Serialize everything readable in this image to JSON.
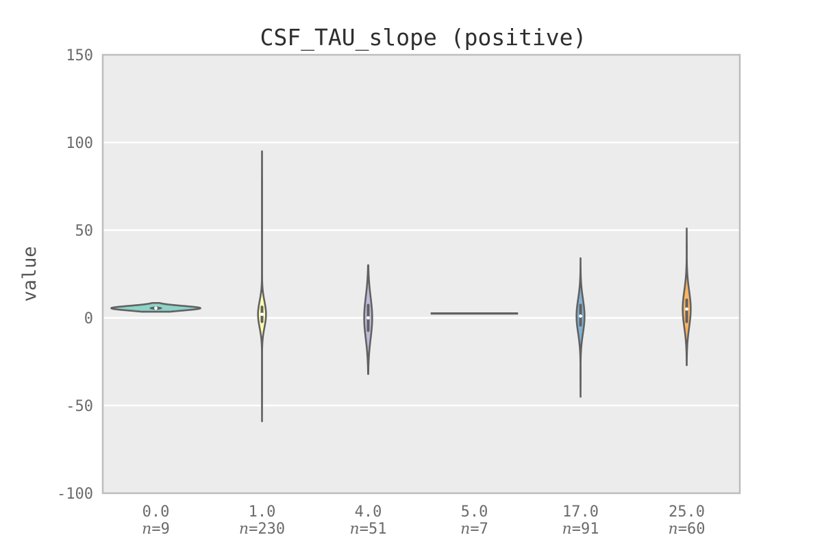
{
  "chart_data": {
    "type": "violin",
    "title": "CSF_TAU_slope (positive)",
    "ylabel": "value",
    "xlabel": "",
    "ylim": [
      -100,
      150
    ],
    "yticks": [
      -100,
      -50,
      0,
      50,
      100,
      150
    ],
    "grid": true,
    "n_prefix": "n",
    "colors": {
      "background": "#ececec",
      "grid": "#ffffff",
      "border": "#bdbdbd",
      "outline": "#616161"
    },
    "categories": [
      "0.0",
      "1.0",
      "4.0",
      "5.0",
      "17.0",
      "25.0"
    ],
    "series": [
      {
        "category": "0.0",
        "n": "=9",
        "color": "#8dd3c7",
        "min": 3.5,
        "max": 8.5,
        "q1": 4.6,
        "q3": 6.4,
        "median": 5.5,
        "halfwidth": 1.0
      },
      {
        "category": "1.0",
        "n": "=230",
        "color": "#ffffb3",
        "min": -59,
        "max": 95,
        "q1": -3,
        "q3": 7,
        "median": 2,
        "halfwidth": 0.09
      },
      {
        "category": "4.0",
        "n": "=51",
        "color": "#bebada",
        "min": -32,
        "max": 30,
        "q1": -8,
        "q3": 8,
        "median": 0,
        "halfwidth": 0.09
      },
      {
        "category": "5.0",
        "n": "=7",
        "color": "#fb8072",
        "min": 2.5,
        "max": 2.5,
        "q1": 2.5,
        "q3": 2.5,
        "median": 2.5,
        "halfwidth": 1.0
      },
      {
        "category": "17.0",
        "n": "=91",
        "color": "#80b1d3",
        "min": -45,
        "max": 34,
        "q1": -5,
        "q3": 8,
        "median": 1,
        "halfwidth": 0.09
      },
      {
        "category": "25.0",
        "n": "=60",
        "color": "#fdb462",
        "min": -27,
        "max": 51,
        "q1": -3,
        "q3": 11,
        "median": 5,
        "halfwidth": 0.09
      }
    ]
  }
}
